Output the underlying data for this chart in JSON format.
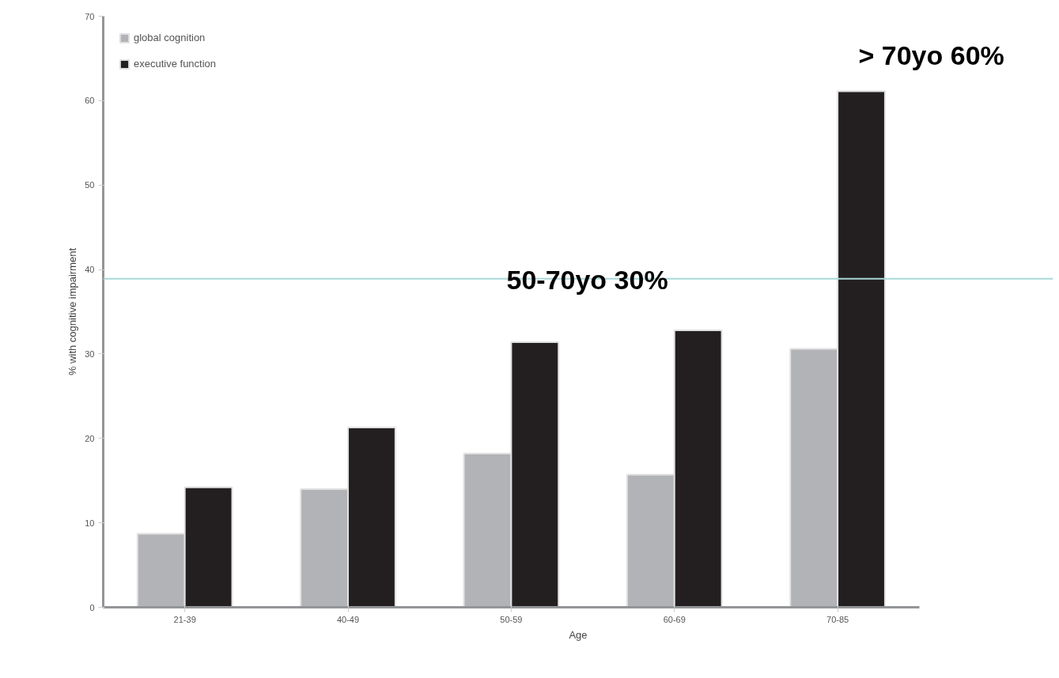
{
  "chart_data": {
    "type": "bar",
    "xlabel": "Age",
    "ylabel": "% with cognitive impairment",
    "categories": [
      "21-39",
      "40-49",
      "50-59",
      "60-69",
      "70-85"
    ],
    "series": [
      {
        "name": "global cognition",
        "color": "#b2b3b6",
        "values": [
          8.7,
          14.0,
          18.2,
          15.7,
          30.6
        ]
      },
      {
        "name": "executive function",
        "color": "#231f20",
        "values": [
          14.2,
          21.3,
          31.4,
          32.8,
          61.1
        ]
      }
    ],
    "ylim": [
      0,
      70
    ],
    "yticks": [
      0,
      10,
      20,
      30,
      40,
      50,
      60,
      70
    ],
    "grid": false,
    "legend": "top left",
    "ref_lines": [
      {
        "axis": "y",
        "value": 38.9,
        "color": "#a9d8d8"
      }
    ],
    "annotations": [
      "50-70yo 30%",
      "> 70yo 60%"
    ]
  }
}
